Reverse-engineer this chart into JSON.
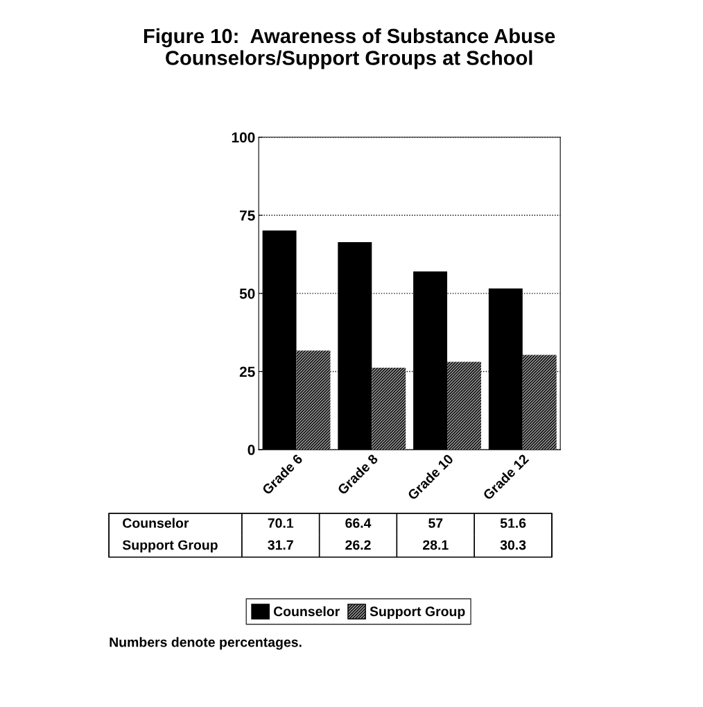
{
  "chart_data": {
    "type": "bar",
    "title": "Figure 10:  Awareness of Substance Abuse\nCounselors/Support Groups at School",
    "categories": [
      "Grade 6",
      "Grade 8",
      "Grade 10",
      "Grade 12"
    ],
    "series": [
      {
        "name": "Counselor",
        "color": "#000000",
        "values": [
          70.1,
          66.4,
          57,
          51.6
        ]
      },
      {
        "name": "Support Group",
        "color": "#9a9a9a",
        "values": [
          31.7,
          26.2,
          28.1,
          30.3
        ]
      }
    ],
    "ylim": [
      0,
      100
    ],
    "yticks": [
      0,
      25,
      50,
      75,
      100
    ],
    "grid": "y",
    "line_style": "dotted",
    "legend": "bottom",
    "data_labels": true,
    "annotations": [
      "Numbers denote percentages."
    ]
  }
}
